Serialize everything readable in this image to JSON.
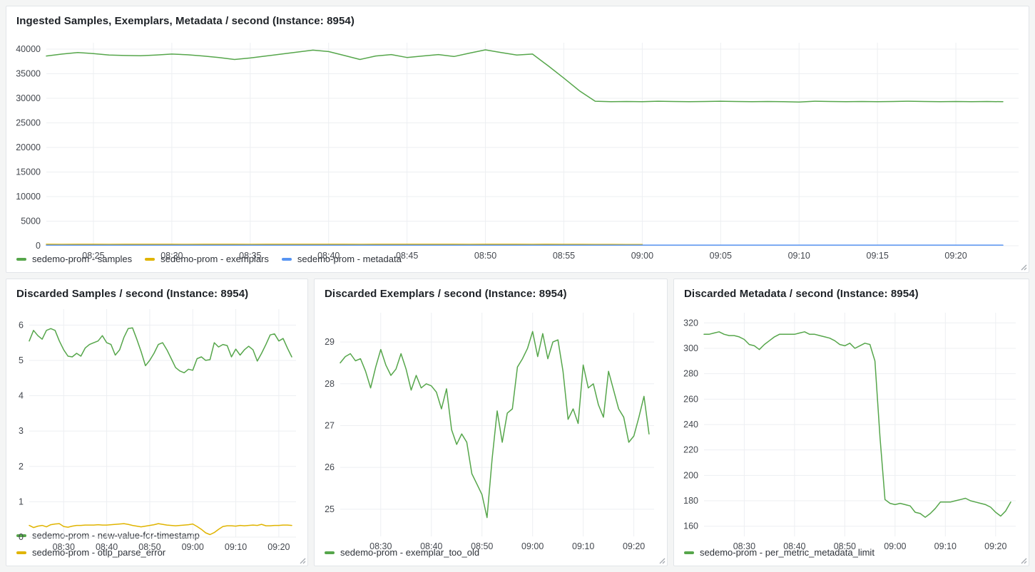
{
  "page": {
    "background": "#f4f5f5"
  },
  "colors": {
    "green": "#56a64b",
    "yellow": "#e0b400",
    "blue": "#5794f2",
    "grid": "#edeff2",
    "tick_text": "#44484f"
  },
  "chart_data": [
    {
      "type": "line",
      "title": "Ingested Samples, Exemplars, Metadata / second (Instance: 8954)",
      "x_start_minute": 22,
      "x_step_minutes": 1,
      "xlim": [
        22,
        84
      ],
      "ylim": [
        0,
        41300
      ],
      "grid": true,
      "legend_position": "bottom-horizontal",
      "yticks": [
        0,
        5000,
        10000,
        15000,
        20000,
        25000,
        30000,
        35000,
        40000
      ],
      "xticks": [
        {
          "m": 25,
          "label": "08:25"
        },
        {
          "m": 30,
          "label": "08:30"
        },
        {
          "m": 35,
          "label": "08:35"
        },
        {
          "m": 40,
          "label": "08:40"
        },
        {
          "m": 45,
          "label": "08:45"
        },
        {
          "m": 50,
          "label": "08:50"
        },
        {
          "m": 55,
          "label": "08:55"
        },
        {
          "m": 60,
          "label": "09:00"
        },
        {
          "m": 65,
          "label": "09:05"
        },
        {
          "m": 70,
          "label": "09:10"
        },
        {
          "m": 75,
          "label": "09:15"
        },
        {
          "m": 80,
          "label": "09:20"
        }
      ],
      "series": [
        {
          "name": "sedemo-prom - samples",
          "color": "#56a64b",
          "values": [
            38600,
            39000,
            39300,
            39100,
            38800,
            38700,
            38650,
            38800,
            39000,
            38850,
            38600,
            38300,
            37900,
            38200,
            38600,
            39000,
            39400,
            39800,
            39500,
            38700,
            37900,
            38600,
            38900,
            38300,
            38600,
            38900,
            38500,
            39200,
            39850,
            39300,
            38800,
            39000,
            36600,
            34100,
            31500,
            29400,
            29300,
            29350,
            29300,
            29400,
            29350,
            29300,
            29350,
            29400,
            29350,
            29300,
            29350,
            29300,
            29250,
            29400,
            29350,
            29300,
            29350,
            29300,
            29350,
            29400,
            29350,
            29300,
            29350,
            29300,
            29350,
            29300
          ]
        },
        {
          "name": "sedemo-prom - exemplars",
          "color": "#e0b400",
          "values": [
            310,
            290,
            300,
            310,
            295,
            305,
            300,
            310,
            300,
            295,
            305,
            310,
            300,
            295,
            300,
            305,
            300,
            310,
            305,
            300,
            295,
            300,
            305,
            300,
            310,
            305,
            300,
            295,
            300,
            305,
            300,
            295,
            300,
            290,
            285,
            280,
            270,
            260,
            250,
            null,
            null,
            null,
            null,
            null,
            null,
            null,
            null,
            null,
            null,
            null,
            null,
            null,
            null,
            null,
            null,
            null,
            null,
            null,
            null,
            null,
            null,
            null
          ]
        },
        {
          "name": "sedemo-prom - metadata",
          "color": "#5794f2",
          "values": [
            130,
            130,
            130,
            130,
            130,
            130,
            130,
            130,
            130,
            130,
            130,
            130,
            130,
            130,
            130,
            130,
            130,
            130,
            130,
            130,
            130,
            130,
            130,
            130,
            130,
            130,
            130,
            130,
            130,
            130,
            130,
            130,
            130,
            130,
            130,
            130,
            130,
            130,
            130,
            130,
            130,
            130,
            130,
            130,
            130,
            130,
            130,
            130,
            130,
            130,
            130,
            130,
            130,
            130,
            130,
            130,
            130,
            130,
            130,
            130,
            130,
            130
          ]
        }
      ]
    },
    {
      "type": "line",
      "title": "Discarded Samples / second (Instance: 8954)",
      "x_start_minute": 22,
      "x_step_minutes": 1,
      "xlim": [
        22,
        84
      ],
      "ylim": [
        0,
        6.45
      ],
      "grid": true,
      "legend_position": "bottom-stacked",
      "yticks": [
        0,
        1,
        2,
        3,
        4,
        5,
        6
      ],
      "xticks": [
        {
          "m": 30,
          "label": "08:30"
        },
        {
          "m": 40,
          "label": "08:40"
        },
        {
          "m": 50,
          "label": "08:50"
        },
        {
          "m": 60,
          "label": "09:00"
        },
        {
          "m": 70,
          "label": "09:10"
        },
        {
          "m": 80,
          "label": "09:20"
        }
      ],
      "series": [
        {
          "name": "sedemo-prom - new-value-for-timestamp",
          "color": "#56a64b",
          "values": [
            5.55,
            5.85,
            5.7,
            5.6,
            5.85,
            5.9,
            5.85,
            5.55,
            5.3,
            5.12,
            5.1,
            5.2,
            5.12,
            5.35,
            5.45,
            5.5,
            5.55,
            5.7,
            5.5,
            5.45,
            5.15,
            5.3,
            5.65,
            5.9,
            5.92,
            5.6,
            5.25,
            4.85,
            5.0,
            5.2,
            5.45,
            5.5,
            5.3,
            5.05,
            4.8,
            4.7,
            4.65,
            4.75,
            4.72,
            5.05,
            5.1,
            5.0,
            5.02,
            5.5,
            5.38,
            5.45,
            5.42,
            5.1,
            5.32,
            5.15,
            5.3,
            5.4,
            5.3,
            4.98,
            5.2,
            5.45,
            5.72,
            5.75,
            5.55,
            5.62,
            5.35,
            5.1
          ]
        },
        {
          "name": "sedemo-prom - otlp_parse_error",
          "color": "#e0b400",
          "values": [
            0.33,
            0.27,
            0.31,
            0.33,
            0.29,
            0.35,
            0.37,
            0.38,
            0.3,
            0.28,
            0.31,
            0.33,
            0.33,
            0.34,
            0.34,
            0.34,
            0.35,
            0.34,
            0.34,
            0.35,
            0.36,
            0.37,
            0.38,
            0.36,
            0.33,
            0.31,
            0.29,
            0.31,
            0.33,
            0.35,
            0.38,
            0.36,
            0.34,
            0.33,
            0.32,
            0.33,
            0.34,
            0.35,
            0.37,
            0.3,
            0.22,
            0.12,
            0.07,
            0.13,
            0.22,
            0.3,
            0.32,
            0.32,
            0.31,
            0.33,
            0.32,
            0.33,
            0.34,
            0.33,
            0.36,
            0.32,
            0.32,
            0.33,
            0.33,
            0.34,
            0.34,
            0.33
          ]
        }
      ]
    },
    {
      "type": "line",
      "title": "Discarded Exemplars / second (Instance: 8954)",
      "x_start_minute": 22,
      "x_step_minutes": 1,
      "xlim": [
        22,
        84
      ],
      "ylim": [
        24.35,
        29.7
      ],
      "grid": true,
      "legend_position": "bottom-horizontal",
      "yticks": [
        25,
        26,
        27,
        28,
        29
      ],
      "xticks": [
        {
          "m": 30,
          "label": "08:30"
        },
        {
          "m": 40,
          "label": "08:40"
        },
        {
          "m": 50,
          "label": "08:50"
        },
        {
          "m": 60,
          "label": "09:00"
        },
        {
          "m": 70,
          "label": "09:10"
        },
        {
          "m": 80,
          "label": "09:20"
        }
      ],
      "series": [
        {
          "name": "sedemo-prom - exemplar_too_old",
          "color": "#56a64b",
          "values": [
            28.5,
            28.65,
            28.72,
            28.55,
            28.6,
            28.3,
            27.9,
            28.4,
            28.82,
            28.45,
            28.2,
            28.35,
            28.72,
            28.35,
            27.85,
            28.2,
            27.9,
            28.0,
            27.95,
            27.8,
            27.4,
            27.88,
            26.9,
            26.55,
            26.8,
            26.6,
            25.85,
            25.6,
            25.35,
            24.8,
            26.2,
            27.35,
            26.6,
            27.3,
            27.4,
            28.4,
            28.6,
            28.85,
            29.25,
            28.65,
            29.2,
            28.6,
            29.0,
            29.05,
            28.3,
            27.15,
            27.4,
            27.05,
            28.45,
            27.9,
            28.0,
            27.5,
            27.2,
            28.3,
            27.85,
            27.4,
            27.2,
            26.6,
            26.75,
            27.2,
            27.7,
            26.8
          ]
        }
      ]
    },
    {
      "type": "line",
      "title": "Discarded Metadata / second (Instance: 8954)",
      "x_start_minute": 22,
      "x_step_minutes": 1,
      "xlim": [
        22,
        84
      ],
      "ylim": [
        152,
        328
      ],
      "grid": true,
      "legend_position": "bottom-horizontal",
      "yticks": [
        160,
        180,
        200,
        220,
        240,
        260,
        280,
        300,
        320
      ],
      "xticks": [
        {
          "m": 30,
          "label": "08:30"
        },
        {
          "m": 40,
          "label": "08:40"
        },
        {
          "m": 50,
          "label": "08:50"
        },
        {
          "m": 60,
          "label": "09:00"
        },
        {
          "m": 70,
          "label": "09:10"
        },
        {
          "m": 80,
          "label": "09:20"
        }
      ],
      "series": [
        {
          "name": "sedemo-prom - per_metric_metadata_limit",
          "color": "#56a64b",
          "values": [
            311,
            311,
            312,
            313,
            311,
            310,
            310,
            309,
            307,
            303,
            302,
            299,
            303,
            306,
            309,
            311,
            311,
            311,
            311,
            312,
            313,
            311,
            311,
            310,
            309,
            308,
            306,
            303,
            302,
            304,
            300,
            302,
            304,
            303,
            290,
            230,
            181,
            178,
            177,
            178,
            177,
            176,
            171,
            170,
            167,
            170,
            174,
            179,
            179,
            179,
            180,
            181,
            182,
            180,
            179,
            178,
            177,
            175,
            171,
            168,
            172,
            179
          ]
        }
      ]
    }
  ]
}
